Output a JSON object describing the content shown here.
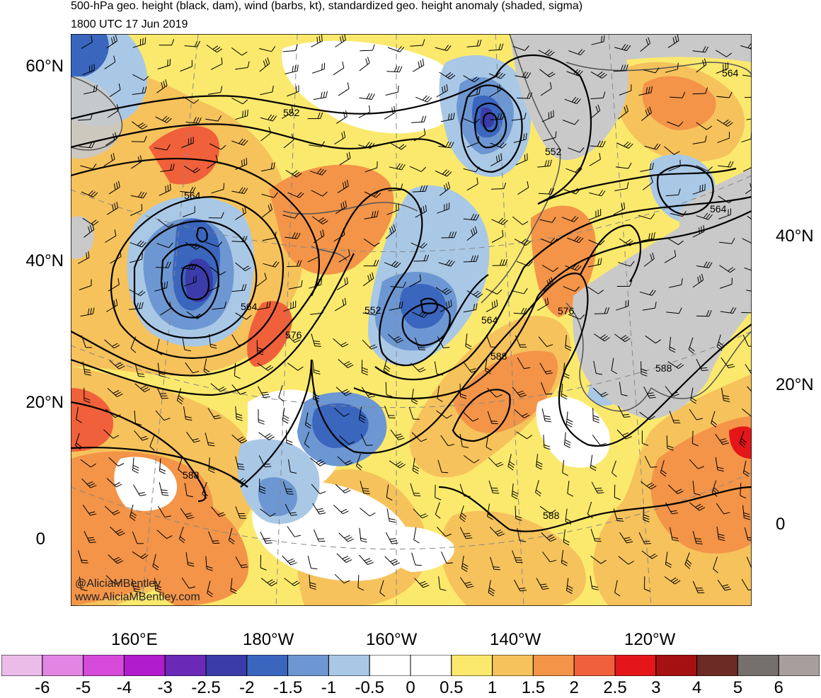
{
  "header": {
    "title": "500-hPa geo. height (black, dam), wind (barbs, kt), standardized geo. height anomaly (shaded, sigma)",
    "valid_time": "1800 UTC 17 Jun 2019"
  },
  "axes": {
    "lat_left": [
      "60°N",
      "40°N",
      "20°N",
      "0"
    ],
    "lat_right": [
      "40°N",
      "20°N",
      "0"
    ],
    "lon_bottom": [
      "160°E",
      "180°W",
      "160°W",
      "140°W",
      "120°W"
    ]
  },
  "contour_labels": [
    {
      "id": "c552a",
      "text": "552"
    },
    {
      "id": "c552b",
      "text": "552"
    },
    {
      "id": "c552c",
      "text": "552"
    },
    {
      "id": "c564a",
      "text": "564"
    },
    {
      "id": "c564b",
      "text": "564"
    },
    {
      "id": "c564c",
      "text": "564"
    },
    {
      "id": "c564d",
      "text": "564"
    },
    {
      "id": "c564e",
      "text": "564"
    },
    {
      "id": "c576a",
      "text": "576"
    },
    {
      "id": "c576b",
      "text": "576"
    },
    {
      "id": "c588a",
      "text": "588"
    },
    {
      "id": "c588b",
      "text": "588"
    },
    {
      "id": "c588c",
      "text": "588"
    },
    {
      "id": "c588d",
      "text": "588"
    }
  ],
  "colorbar": {
    "labels": [
      "-6",
      "-5",
      "-4",
      "-3",
      "-2.5",
      "-2",
      "-1.5",
      "-1",
      "-0.5",
      "0",
      "0.5",
      "1",
      "1.5",
      "2",
      "2.5",
      "3",
      "4",
      "5",
      "6"
    ],
    "colors": [
      "#ecbce9",
      "#e385e3",
      "#d54ad9",
      "#b11ccd",
      "#6a2ab7",
      "#3b3ca9",
      "#3a66be",
      "#6d97d2",
      "#a9c8e6",
      "#ffffff",
      "#ffffff",
      "#fbe96d",
      "#f6c25c",
      "#f39448",
      "#f0603a",
      "#e4161a",
      "#a51012",
      "#6c2b24",
      "#75706c",
      "#a89e9b"
    ]
  },
  "legend_colors": {
    "anom_neg_1": "#a9c8e6",
    "anom_neg_2": "#6d97d2",
    "anom_neg_3": "#3a66be",
    "anom_neg_4": "#3b3ca9",
    "anom_pos_1": "#fbe96d",
    "anom_pos_2": "#f6c25c",
    "anom_pos_3": "#f39448",
    "anom_pos_4": "#f0603a",
    "anom_pos_5": "#e4161a",
    "land_gray": "#c9c9c9"
  },
  "watermark": {
    "handle": "@AliciaMBentley",
    "site": "www.AliciaMBentley.com"
  }
}
